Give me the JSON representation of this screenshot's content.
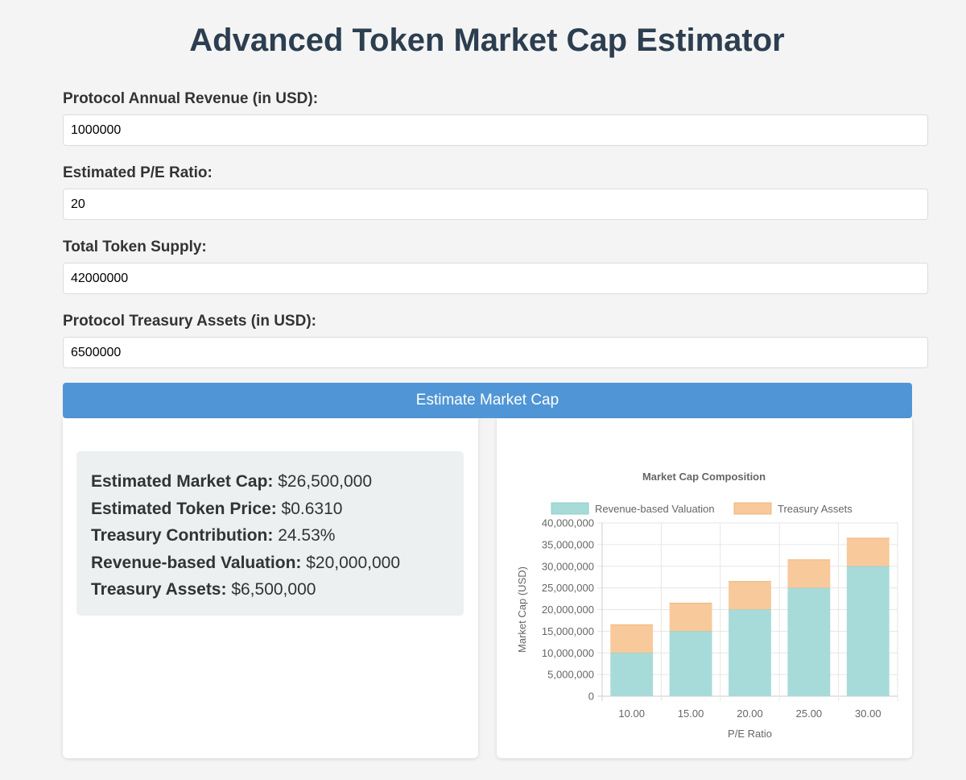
{
  "title": "Advanced Token Market Cap Estimator",
  "form": {
    "fields": [
      {
        "label": "Protocol Annual Revenue (in USD):",
        "value": "1000000"
      },
      {
        "label": "Estimated P/E Ratio:",
        "value": "20"
      },
      {
        "label": "Total Token Supply:",
        "value": "42000000"
      },
      {
        "label": "Protocol Treasury Assets (in USD):",
        "value": "6500000"
      }
    ],
    "button_label": "Estimate Market Cap"
  },
  "results": [
    {
      "label": "Estimated Market Cap:",
      "value": "$26,500,000"
    },
    {
      "label": "Estimated Token Price:",
      "value": "$0.6310"
    },
    {
      "label": "Treasury Contribution:",
      "value": "24.53%"
    },
    {
      "label": "Revenue-based Valuation:",
      "value": "$20,000,000"
    },
    {
      "label": "Treasury Assets:",
      "value": "$6,500,000"
    }
  ],
  "chart_data": {
    "type": "bar",
    "stacked": true,
    "title": "Market Cap Composition",
    "xlabel": "P/E Ratio",
    "ylabel": "Market Cap (USD)",
    "categories": [
      "10.00",
      "15.00",
      "20.00",
      "25.00",
      "30.00"
    ],
    "series": [
      {
        "name": "Revenue-based Valuation",
        "values": [
          10000000,
          15000000,
          20000000,
          25000000,
          30000000
        ],
        "color": "#a6dbd9",
        "border": "#8ccfcc"
      },
      {
        "name": "Treasury Assets",
        "values": [
          6500000,
          6500000,
          6500000,
          6500000,
          6500000
        ],
        "color": "#f7c99b",
        "border": "#f2b47a"
      }
    ],
    "ylim": [
      0,
      40000000
    ],
    "yticks": [
      "0",
      "5,000,000",
      "10,000,000",
      "15,000,000",
      "20,000,000",
      "25,000,000",
      "30,000,000",
      "35,000,000",
      "40,000,000"
    ],
    "grid": true,
    "legend": "top"
  },
  "colors": {
    "accent": "#5096d6",
    "title": "#2c3e50",
    "page_bg": "#f4f4f4",
    "results_bg": "#ecf0f1"
  }
}
